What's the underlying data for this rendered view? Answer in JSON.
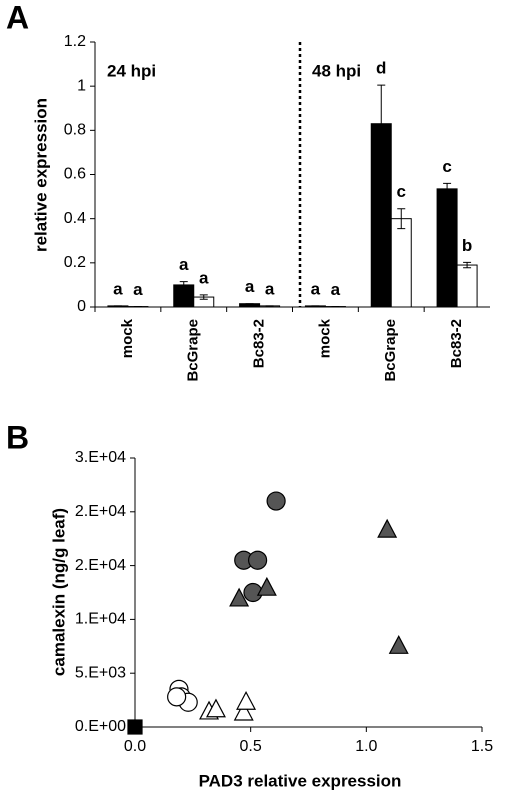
{
  "chart_data": [
    {
      "type": "bar",
      "panel": "A",
      "ylabel": "relative expression",
      "annotations": [
        "24 hpi",
        "48 hpi"
      ],
      "categories": [
        "mock",
        "BcGrape",
        "Bc83-2",
        "mock",
        "BcGrape",
        "Bc83-2"
      ],
      "series": [
        {
          "color": "#000000",
          "values": [
            0.005,
            0.1,
            0.015,
            0.005,
            0.83,
            0.535
          ],
          "errors": [
            0,
            0.015,
            0,
            0,
            0.175,
            0.025
          ],
          "letters": [
            "a",
            "a",
            "a",
            "a",
            "d",
            "c"
          ]
        },
        {
          "color": "#ffffff",
          "values": [
            0.002,
            0.045,
            0.005,
            0.002,
            0.4,
            0.19
          ],
          "errors": [
            0,
            0.01,
            0,
            0,
            0.045,
            0.012
          ],
          "letters": [
            "a",
            "a",
            "a",
            "a",
            "c",
            "b"
          ]
        }
      ],
      "ylim": [
        0,
        1.2
      ],
      "yticks": [
        0,
        0.2,
        0.4,
        0.6,
        0.8,
        1,
        1.2
      ]
    },
    {
      "type": "scatter",
      "panel": "B",
      "xlabel": "PAD3 relative expression",
      "ylabel": "camalexin (ng/g leaf)",
      "series": [
        {
          "color": "#000000",
          "marker": "square",
          "x": [
            0
          ],
          "y": [
            0
          ]
        },
        {
          "color": "#ffffff",
          "marker": "circle",
          "x": [
            0.19,
            0.2,
            0.23,
            0.18
          ],
          "y": [
            3500,
            2800,
            2300,
            2800
          ]
        },
        {
          "color": "#ffffff",
          "marker": "triangle",
          "x": [
            0.32,
            0.35,
            0.47,
            0.48
          ],
          "y": [
            1400,
            1600,
            1300,
            2300
          ]
        },
        {
          "color": "#555555",
          "marker": "circle",
          "x": [
            0.61,
            0.47,
            0.53,
            0.51
          ],
          "y": [
            21000,
            15500,
            15500,
            12500
          ]
        },
        {
          "color": "#555555",
          "marker": "triangle",
          "x": [
            0.45,
            0.57,
            1.09,
            1.14
          ],
          "y": [
            11900,
            12900,
            18300,
            7500
          ]
        }
      ],
      "xlim": [
        0,
        1.5
      ],
      "xticks": [
        {
          "value": 0,
          "label": "0.0"
        },
        {
          "value": 0.5,
          "label": "0.5"
        },
        {
          "value": 1,
          "label": "1.0"
        },
        {
          "value": 1.5,
          "label": "1.5"
        }
      ],
      "ylim": [
        0,
        25000
      ],
      "yticks": [
        {
          "value": 0,
          "label": "0.E+00"
        },
        {
          "value": 5000,
          "label": "5.E+03"
        },
        {
          "value": 10000,
          "label": "1.E+04"
        },
        {
          "value": 15000,
          "label": "2.E+04"
        },
        {
          "value": 20000,
          "label": "2.E+04"
        },
        {
          "value": 25000,
          "label": "3.E+04"
        }
      ]
    }
  ]
}
